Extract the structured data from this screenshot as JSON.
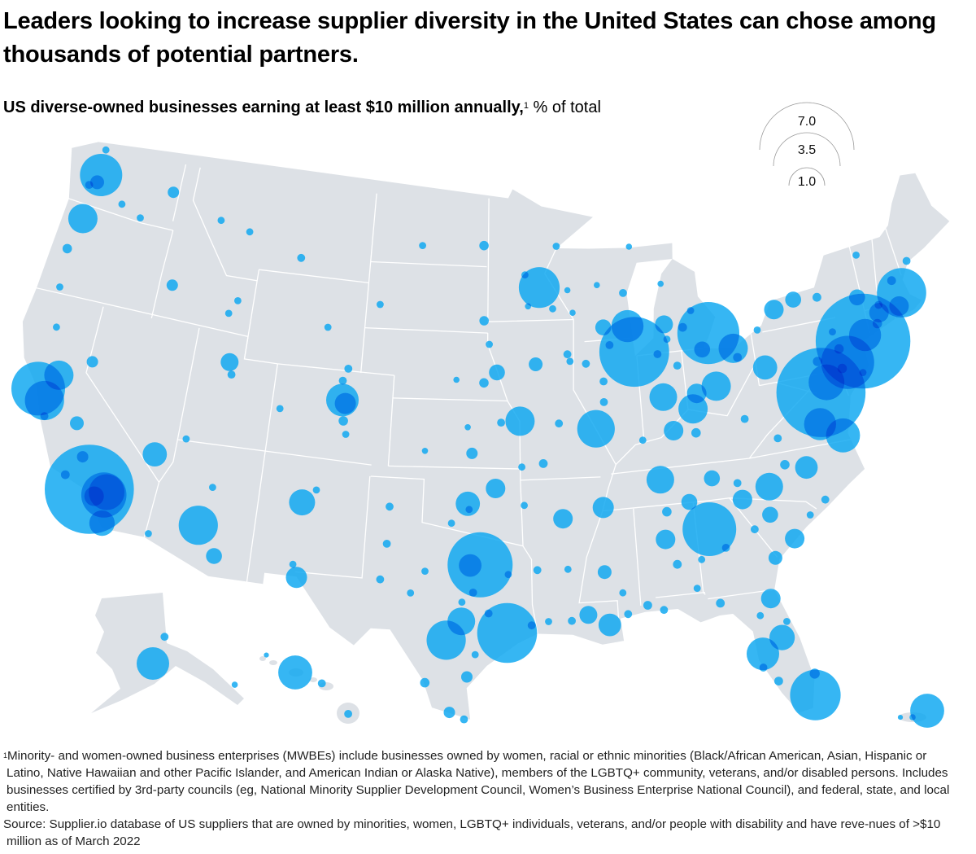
{
  "title": "Leaders looking to increase supplier diversity in the United States can chose among thousands of potential partners.",
  "subtitle": {
    "bold": "US diverse-owned businesses earning at least $10 million annually,",
    "footnote_marker": "1",
    "unit": " % of total"
  },
  "legend": {
    "values": [
      "7.0",
      "3.5",
      "1.0"
    ]
  },
  "colors": {
    "land": "#dde1e6",
    "border": "#ffffff",
    "bubble": "#0aa6f0",
    "legend_arc": "#9a9a9a"
  },
  "footnotes": {
    "note_marker": "1",
    "note": "Minority- and women-owned business enterprises (MWBEs) include businesses owned by women, racial or ethnic minorities (Black/African American, Asian, Hispanic or Latino, Native Hawaiian and other Pacific Islander, and American Indian or Alaska Native), members of the LGBTQ+ community, veterans, and/or disabled persons. Includes businesses certified by 3rd-party councils (eg, National Minority Supplier Development Council, Women’s Business Enterprise National Council), and federal, state, and local entities.",
    "source": "Source: Supplier.io database of US suppliers that are owned by minorities, women, LGBTQ+ individuals, veterans, and/or people with disability and have reve-nues of >$10 million as of March 2022"
  },
  "map_data": {
    "type": "proportional-symbol map",
    "value_unit": "% of total",
    "bubbles": [
      {
        "lon": -74.0,
        "lat": 40.71,
        "value": 7.0
      },
      {
        "lon": -77.04,
        "lat": 38.9,
        "value": 6.2
      },
      {
        "lon": -118.24,
        "lat": 34.05,
        "value": 6.2
      },
      {
        "lon": -87.63,
        "lat": 41.88,
        "value": 3.8
      },
      {
        "lon": -96.8,
        "lat": 32.78,
        "value": 3.3
      },
      {
        "lon": -83.05,
        "lat": 42.33,
        "value": 3.0
      },
      {
        "lon": -95.37,
        "lat": 29.76,
        "value": 2.8
      },
      {
        "lon": -84.39,
        "lat": 33.75,
        "value": 2.25
      },
      {
        "lon": -122.42,
        "lat": 37.77,
        "value": 2.25
      },
      {
        "lon": -75.16,
        "lat": 39.95,
        "value": 2.2
      },
      {
        "lon": -80.19,
        "lat": 25.76,
        "value": 2.0
      },
      {
        "lon": -71.06,
        "lat": 42.36,
        "value": 1.9
      },
      {
        "lon": -117.4,
        "lat": 33.95,
        "value": 1.6
      },
      {
        "lon": -122.33,
        "lat": 47.61,
        "value": 1.4
      },
      {
        "lon": -93.27,
        "lat": 44.98,
        "value": 1.3
      },
      {
        "lon": -121.89,
        "lat": 37.34,
        "value": 1.2
      },
      {
        "lon": -112.07,
        "lat": 33.45,
        "value": 1.2
      },
      {
        "lon": -98.49,
        "lat": 29.42,
        "value": 1.2
      },
      {
        "lon": -90.2,
        "lat": 38.63,
        "value": 1.1
      },
      {
        "lon": -117.29,
        "lat": 34.1,
        "value": 1.0
      },
      {
        "lon": -76.61,
        "lat": 39.29,
        "value": 1.0
      },
      {
        "lon": -76.29,
        "lat": 36.85,
        "value": 0.9
      },
      {
        "lon": -73.8,
        "lat": 40.95,
        "value": 0.8
      },
      {
        "lon": -77.44,
        "lat": 37.54,
        "value": 0.8
      },
      {
        "lon": -87.91,
        "lat": 43.04,
        "value": 0.8
      },
      {
        "lon": -104.99,
        "lat": 39.74,
        "value": 0.83
      },
      {
        "lon": -82.46,
        "lat": 27.95,
        "value": 0.83
      },
      {
        "lon": -121.49,
        "lat": 38.58,
        "value": 0.67
      },
      {
        "lon": -122.68,
        "lat": 45.52,
        "value": 0.67
      },
      {
        "lon": -94.58,
        "lat": 39.1,
        "value": 0.67
      },
      {
        "lon": -83.0,
        "lat": 39.96,
        "value": 0.67
      },
      {
        "lon": -84.51,
        "lat": 39.1,
        "value": 0.67
      },
      {
        "lon": -81.69,
        "lat": 41.5,
        "value": 0.67
      },
      {
        "lon": -86.16,
        "lat": 39.77,
        "value": 0.6
      },
      {
        "lon": -97.74,
        "lat": 30.27,
        "value": 0.6
      },
      {
        "lon": -86.78,
        "lat": 36.16,
        "value": 0.6
      },
      {
        "lon": -80.84,
        "lat": 35.23,
        "value": 0.6
      },
      {
        "lon": -106.65,
        "lat": 35.08,
        "value": 0.53
      },
      {
        "lon": -81.38,
        "lat": 28.54,
        "value": 0.5
      },
      {
        "lon": -117.16,
        "lat": 32.72,
        "value": 0.5
      },
      {
        "lon": -115.14,
        "lat": 36.17,
        "value": 0.46
      },
      {
        "lon": -79.99,
        "lat": 40.44,
        "value": 0.46
      },
      {
        "lon": -97.52,
        "lat": 35.47,
        "value": 0.46
      },
      {
        "lon": -97.33,
        "lat": 32.75,
        "value": 0.4
      },
      {
        "lon": -90.07,
        "lat": 29.95,
        "value": 0.4
      },
      {
        "lon": -78.64,
        "lat": 35.78,
        "value": 0.4
      },
      {
        "lon": -104.8,
        "lat": 39.6,
        "value": 0.35
      },
      {
        "lon": -106.49,
        "lat": 31.76,
        "value": 0.35
      },
      {
        "lon": -90.05,
        "lat": 35.15,
        "value": 0.35
      },
      {
        "lon": -85.76,
        "lat": 38.25,
        "value": 0.3
      },
      {
        "lon": -86.8,
        "lat": 33.52,
        "value": 0.3
      },
      {
        "lon": -81.66,
        "lat": 30.33,
        "value": 0.3
      },
      {
        "lon": -95.99,
        "lat": 36.15,
        "value": 0.3
      },
      {
        "lon": -72.68,
        "lat": 41.76,
        "value": 0.3
      },
      {
        "lon": -71.41,
        "lat": 41.82,
        "value": 0.3
      },
      {
        "lon": -78.88,
        "lat": 42.89,
        "value": 0.3
      },
      {
        "lon": -82.4,
        "lat": 34.85,
        "value": 0.3
      },
      {
        "lon": -79.93,
        "lat": 32.78,
        "value": 0.3
      },
      {
        "lon": -92.29,
        "lat": 34.75,
        "value": 0.3
      },
      {
        "lon": -84.19,
        "lat": 39.76,
        "value": 0.3
      },
      {
        "lon": -117.9,
        "lat": 33.8,
        "value": 0.3
      },
      {
        "lon": -85.67,
        "lat": 42.96,
        "value": 0.25
      },
      {
        "lon": -111.89,
        "lat": 40.76,
        "value": 0.25
      },
      {
        "lon": -91.15,
        "lat": 30.45,
        "value": 0.25
      },
      {
        "lon": -95.93,
        "lat": 41.26,
        "value": 0.2
      },
      {
        "lon": -77.61,
        "lat": 43.16,
        "value": 0.2
      },
      {
        "lon": -73.75,
        "lat": 42.65,
        "value": 0.2
      },
      {
        "lon": -81.03,
        "lat": 34.0,
        "value": 0.2
      },
      {
        "lon": -89.4,
        "lat": 43.07,
        "value": 0.2
      },
      {
        "lon": -83.55,
        "lat": 41.65,
        "value": 0.2
      },
      {
        "lon": -83.92,
        "lat": 35.96,
        "value": 0.2
      },
      {
        "lon": -85.31,
        "lat": 35.05,
        "value": 0.2
      },
      {
        "lon": -110.97,
        "lat": 32.22,
        "value": 0.2
      },
      {
        "lon": -93.6,
        "lat": 41.59,
        "value": 0.15
      },
      {
        "lon": -119.79,
        "lat": 36.74,
        "value": 0.15
      },
      {
        "lon": -81.1,
        "lat": 32.08,
        "value": 0.15
      },
      {
        "lon": -90.18,
        "lat": 32.3,
        "value": 0.15
      },
      {
        "lon": -122.44,
        "lat": 47.25,
        "value": 0.15
      },
      {
        "lon": -116.2,
        "lat": 43.62,
        "value": 0.1
      },
      {
        "lon": -117.43,
        "lat": 47.66,
        "value": 0.1
      },
      {
        "lon": -97.4,
        "lat": 27.8,
        "value": 0.1
      },
      {
        "lon": -98.23,
        "lat": 26.2,
        "value": 0.1
      },
      {
        "lon": -97.34,
        "lat": 37.69,
        "value": 0.1
      },
      {
        "lon": -119.81,
        "lat": 39.53,
        "value": 0.1
      },
      {
        "lon": -119.02,
        "lat": 35.37,
        "value": 0.1
      },
      {
        "lon": -99.5,
        "lat": 27.5,
        "value": 0.07
      },
      {
        "lon": -96.7,
        "lat": 40.8,
        "value": 0.07
      },
      {
        "lon": -96.73,
        "lat": 43.54,
        "value": 0.07
      },
      {
        "lon": -96.79,
        "lat": 46.88,
        "value": 0.07
      },
      {
        "lon": -123.09,
        "lat": 44.05,
        "value": 0.07
      },
      {
        "lon": -101.85,
        "lat": 33.58,
        "value": 0.05
      },
      {
        "lon": -101.83,
        "lat": 35.22,
        "value": 0.05
      },
      {
        "lon": -108.5,
        "lat": 45.78,
        "value": 0.05
      },
      {
        "lon": -104.82,
        "lat": 41.14,
        "value": 0.05
      },
      {
        "lon": -100.78,
        "lat": 46.81,
        "value": 0.04
      },
      {
        "lon": -103.23,
        "lat": 44.08,
        "value": 0.04
      },
      {
        "lon": -106.31,
        "lat": 42.87,
        "value": 0.04
      },
      {
        "lon": -113.99,
        "lat": 46.87,
        "value": 0.04
      },
      {
        "lon": -112.03,
        "lat": 46.59,
        "value": 0.04
      },
      {
        "lon": -112.45,
        "lat": 42.87,
        "value": 0.04
      },
      {
        "lon": -111.65,
        "lat": 35.2,
        "value": 0.04
      },
      {
        "lon": -105.94,
        "lat": 35.69,
        "value": 0.04
      },
      {
        "lon": -108.55,
        "lat": 39.06,
        "value": 0.04
      },
      {
        "lon": -95.68,
        "lat": 39.05,
        "value": 0.05
      },
      {
        "lon": -93.29,
        "lat": 37.21,
        "value": 0.06
      },
      {
        "lon": -89.65,
        "lat": 39.78,
        "value": 0.05
      },
      {
        "lon": -89.59,
        "lat": 40.69,
        "value": 0.05
      },
      {
        "lon": -91.67,
        "lat": 41.98,
        "value": 0.05
      },
      {
        "lon": -92.47,
        "lat": 44.02,
        "value": 0.04
      },
      {
        "lon": -92.1,
        "lat": 46.79,
        "value": 0.04
      },
      {
        "lon": -88.02,
        "lat": 44.52,
        "value": 0.05
      },
      {
        "lon": -84.56,
        "lat": 42.73,
        "value": 0.06
      },
      {
        "lon": -85.14,
        "lat": 41.08,
        "value": 0.05
      },
      {
        "lon": -87.57,
        "lat": 37.97,
        "value": 0.04
      },
      {
        "lon": -84.5,
        "lat": 38.04,
        "value": 0.07
      },
      {
        "lon": -81.63,
        "lat": 38.35,
        "value": 0.05
      },
      {
        "lon": -79.94,
        "lat": 37.27,
        "value": 0.05
      },
      {
        "lon": -79.79,
        "lat": 36.07,
        "value": 0.07
      },
      {
        "lon": -77.94,
        "lat": 34.23,
        "value": 0.05
      },
      {
        "lon": -78.89,
        "lat": 33.69,
        "value": 0.04
      },
      {
        "lon": -81.97,
        "lat": 33.47,
        "value": 0.05
      },
      {
        "lon": -83.63,
        "lat": 32.84,
        "value": 0.05
      },
      {
        "lon": -84.28,
        "lat": 30.44,
        "value": 0.06
      },
      {
        "lon": -87.22,
        "lat": 30.42,
        "value": 0.05
      },
      {
        "lon": -88.04,
        "lat": 30.69,
        "value": 0.06
      },
      {
        "lon": -86.3,
        "lat": 32.37,
        "value": 0.06
      },
      {
        "lon": -86.59,
        "lat": 34.73,
        "value": 0.07
      },
      {
        "lon": -93.75,
        "lat": 32.52,
        "value": 0.05
      },
      {
        "lon": -92.02,
        "lat": 30.22,
        "value": 0.05
      },
      {
        "lon": -94.1,
        "lat": 30.08,
        "value": 0.05
      },
      {
        "lon": -97.15,
        "lat": 31.55,
        "value": 0.05
      },
      {
        "lon": -95.3,
        "lat": 32.35,
        "value": 0.04
      },
      {
        "lon": -99.73,
        "lat": 32.45,
        "value": 0.04
      },
      {
        "lon": -102.08,
        "lat": 31.99,
        "value": 0.05
      },
      {
        "lon": -94.4,
        "lat": 35.39,
        "value": 0.04
      },
      {
        "lon": -76.15,
        "lat": 43.05,
        "value": 0.06
      },
      {
        "lon": -73.21,
        "lat": 44.48,
        "value": 0.04
      },
      {
        "lon": -70.26,
        "lat": 43.66,
        "value": 0.05
      },
      {
        "lon": -71.46,
        "lat": 42.99,
        "value": 0.06
      },
      {
        "lon": -76.88,
        "lat": 40.27,
        "value": 0.07
      },
      {
        "lon": -75.49,
        "lat": 40.61,
        "value": 0.07
      },
      {
        "lon": -75.66,
        "lat": 41.41,
        "value": 0.04
      },
      {
        "lon": -80.09,
        "lat": 42.13,
        "value": 0.04
      },
      {
        "lon": -81.52,
        "lat": 41.08,
        "value": 0.06
      },
      {
        "lon": -72.59,
        "lat": 42.1,
        "value": 0.05
      },
      {
        "lon": -72.93,
        "lat": 41.31,
        "value": 0.07
      },
      {
        "lon": -75.55,
        "lat": 39.74,
        "value": 0.07
      },
      {
        "lon": -74.42,
        "lat": 39.36,
        "value": 0.04
      },
      {
        "lon": -82.53,
        "lat": 27.34,
        "value": 0.05
      },
      {
        "lon": -81.87,
        "lat": 26.64,
        "value": 0.06
      },
      {
        "lon": -80.05,
        "lat": 26.71,
        "value": 0.08
      },
      {
        "lon": -82.32,
        "lat": 29.65,
        "value": 0.04
      },
      {
        "lon": -81.02,
        "lat": 29.21,
        "value": 0.04
      },
      {
        "lon": -84.99,
        "lat": 32.46,
        "value": 0.04
      },
      {
        "lon": -82.55,
        "lat": 35.6,
        "value": 0.05
      },
      {
        "lon": -93.22,
        "lat": 30.23,
        "value": 0.04
      },
      {
        "lon": -92.12,
        "lat": 32.51,
        "value": 0.04
      },
      {
        "lon": -89.29,
        "lat": 31.33,
        "value": 0.04
      },
      {
        "lon": -89.09,
        "lat": 30.37,
        "value": 0.05
      },
      {
        "lon": -85.39,
        "lat": 31.22,
        "value": 0.04
      },
      {
        "lon": -122.87,
        "lat": 42.33,
        "value": 0.04
      },
      {
        "lon": -122.39,
        "lat": 40.59,
        "value": 0.04
      },
      {
        "lon": -119.7,
        "lat": 34.42,
        "value": 0.06
      },
      {
        "lon": -121.66,
        "lat": 36.68,
        "value": 0.05
      },
      {
        "lon": -120.51,
        "lat": 46.6,
        "value": 0.04
      },
      {
        "lon": -122.48,
        "lat": 48.75,
        "value": 0.04
      },
      {
        "lon": -122.9,
        "lat": 47.04,
        "value": 0.05
      },
      {
        "lon": -119.14,
        "lat": 46.21,
        "value": 0.04
      },
      {
        "lon": -112.03,
        "lat": 43.49,
        "value": 0.04
      },
      {
        "lon": -111.66,
        "lat": 40.23,
        "value": 0.05
      },
      {
        "lon": -113.58,
        "lat": 37.1,
        "value": 0.04
      },
      {
        "lon": -114.62,
        "lat": 32.69,
        "value": 0.04
      },
      {
        "lon": -106.76,
        "lat": 32.32,
        "value": 0.04
      },
      {
        "lon": -100.44,
        "lat": 31.46,
        "value": 0.04
      },
      {
        "lon": -97.5,
        "lat": 25.9,
        "value": 0.05
      },
      {
        "lon": -97.0,
        "lat": 28.8,
        "value": 0.04
      },
      {
        "lon": -96.33,
        "lat": 30.63,
        "value": 0.05
      },
      {
        "lon": -97.73,
        "lat": 31.12,
        "value": 0.04
      },
      {
        "lon": -97.44,
        "lat": 35.22,
        "value": 0.04
      },
      {
        "lon": -98.39,
        "lat": 34.6,
        "value": 0.04
      },
      {
        "lon": -94.51,
        "lat": 37.08,
        "value": 0.04
      },
      {
        "lon": -92.33,
        "lat": 38.95,
        "value": 0.05
      },
      {
        "lon": -91.53,
        "lat": 41.66,
        "value": 0.04
      },
      {
        "lon": -90.58,
        "lat": 41.52,
        "value": 0.05
      },
      {
        "lon": -89.09,
        "lat": 42.27,
        "value": 0.05
      },
      {
        "lon": -86.25,
        "lat": 41.68,
        "value": 0.05
      },
      {
        "lon": -85.59,
        "lat": 42.29,
        "value": 0.04
      },
      {
        "lon": -83.95,
        "lat": 43.42,
        "value": 0.04
      },
      {
        "lon": -85.62,
        "lat": 44.76,
        "value": 0.03
      },
      {
        "lon": -87.4,
        "lat": 46.55,
        "value": 0.03
      },
      {
        "lon": -89.63,
        "lat": 44.96,
        "value": 0.03
      },
      {
        "lon": -91.5,
        "lat": 44.81,
        "value": 0.03
      },
      {
        "lon": -91.24,
        "lat": 43.8,
        "value": 0.03
      },
      {
        "lon": -94.16,
        "lat": 45.56,
        "value": 0.04
      },
      {
        "lon": -94.0,
        "lat": 44.16,
        "value": 0.03
      },
      {
        "lon": -96.4,
        "lat": 42.5,
        "value": 0.04
      },
      {
        "lon": -98.34,
        "lat": 40.92,
        "value": 0.03
      },
      {
        "lon": -97.61,
        "lat": 38.84,
        "value": 0.03
      },
      {
        "lon": -100.02,
        "lat": 37.75,
        "value": 0.03
      },
      {
        "lon": -104.61,
        "lat": 38.25,
        "value": 0.04
      },
      {
        "lon": -105.08,
        "lat": 40.59,
        "value": 0.05
      },
      {
        "lon": -104.82,
        "lat": 38.83,
        "value": 0.07
      }
    ],
    "alaska_bubbles": [
      {
        "lon": -149.9,
        "lat": 61.2,
        "value": 0.83
      },
      {
        "lon": -147.7,
        "lat": 64.84,
        "value": 0.05
      },
      {
        "lon": -134.42,
        "lat": 58.3,
        "value": 0.03
      }
    ],
    "hawaii_bubbles": [
      {
        "lon": -157.86,
        "lat": 21.31,
        "value": 0.9
      },
      {
        "lon": -159.37,
        "lat": 21.98,
        "value": 0.02
      },
      {
        "lon": -156.47,
        "lat": 20.89,
        "value": 0.05
      },
      {
        "lon": -155.09,
        "lat": 19.72,
        "value": 0.05
      }
    ],
    "puerto_rico_bubbles": [
      {
        "lon": -66.0,
        "lat": 18.47,
        "value": 0.9
      },
      {
        "lon": -66.6,
        "lat": 18.2,
        "value": 0.03
      },
      {
        "lon": -67.1,
        "lat": 18.2,
        "value": 0.02
      }
    ]
  }
}
